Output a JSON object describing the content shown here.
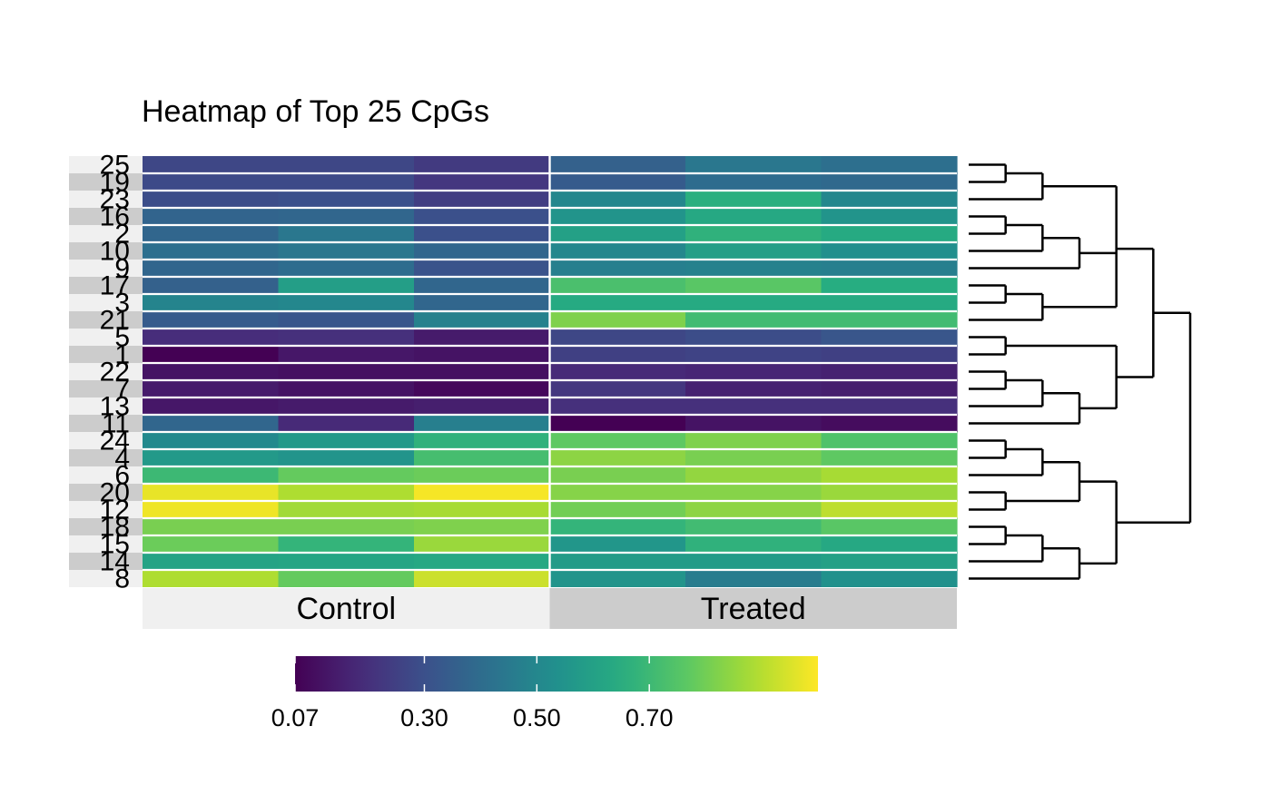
{
  "chart_data": {
    "type": "heatmap",
    "title": "Heatmap of Top 25 CpGs",
    "rows": [
      "25",
      "19",
      "23",
      "16",
      "2",
      "10",
      "9",
      "17",
      "3",
      "21",
      "5",
      "1",
      "22",
      "7",
      "13",
      "11",
      "24",
      "4",
      "6",
      "20",
      "12",
      "18",
      "15",
      "14",
      "8"
    ],
    "groups": [
      {
        "name": "Control",
        "samples": 3
      },
      {
        "name": "Treated",
        "samples": 3
      }
    ],
    "values": [
      [
        0.27,
        0.27,
        0.23,
        0.36,
        0.44,
        0.41
      ],
      [
        0.28,
        0.28,
        0.22,
        0.34,
        0.4,
        0.39
      ],
      [
        0.29,
        0.3,
        0.24,
        0.5,
        0.66,
        0.5
      ],
      [
        0.37,
        0.38,
        0.3,
        0.55,
        0.63,
        0.55
      ],
      [
        0.38,
        0.44,
        0.3,
        0.6,
        0.67,
        0.64
      ],
      [
        0.41,
        0.44,
        0.38,
        0.5,
        0.59,
        0.53
      ],
      [
        0.38,
        0.4,
        0.31,
        0.47,
        0.48,
        0.47
      ],
      [
        0.36,
        0.59,
        0.38,
        0.73,
        0.76,
        0.65
      ],
      [
        0.49,
        0.5,
        0.38,
        0.64,
        0.64,
        0.64
      ],
      [
        0.34,
        0.32,
        0.48,
        0.82,
        0.71,
        0.71
      ],
      [
        0.19,
        0.2,
        0.14,
        0.27,
        0.29,
        0.32
      ],
      [
        0.07,
        0.13,
        0.12,
        0.25,
        0.26,
        0.25
      ],
      [
        0.12,
        0.11,
        0.11,
        0.18,
        0.17,
        0.16
      ],
      [
        0.14,
        0.12,
        0.09,
        0.22,
        0.16,
        0.15
      ],
      [
        0.13,
        0.14,
        0.15,
        0.2,
        0.2,
        0.2
      ],
      [
        0.38,
        0.18,
        0.47,
        0.07,
        0.12,
        0.1
      ],
      [
        0.51,
        0.57,
        0.67,
        0.77,
        0.82,
        0.74
      ],
      [
        0.57,
        0.55,
        0.72,
        0.84,
        0.81,
        0.77
      ],
      [
        0.7,
        0.78,
        0.79,
        0.81,
        0.85,
        0.88
      ],
      [
        0.97,
        0.89,
        0.99,
        0.83,
        0.83,
        0.86
      ],
      [
        0.98,
        0.87,
        0.88,
        0.8,
        0.84,
        0.91
      ],
      [
        0.81,
        0.81,
        0.82,
        0.68,
        0.71,
        0.76
      ],
      [
        0.79,
        0.68,
        0.86,
        0.56,
        0.67,
        0.63
      ],
      [
        0.61,
        0.62,
        0.63,
        0.58,
        0.58,
        0.6
      ],
      [
        0.89,
        0.78,
        0.93,
        0.55,
        0.46,
        0.54
      ]
    ],
    "color_scale": {
      "name": "viridis",
      "min": 0.07,
      "max": 1.0,
      "ticks": [
        0.07,
        0.3,
        0.5,
        0.7
      ],
      "tick_labels": [
        "0.07",
        "0.30",
        "0.50",
        "0.70"
      ]
    },
    "dendrogram": {
      "side": "right",
      "tree": [
        [
          [
            [
              [
                "25",
                "19"
              ],
              "23"
            ],
            [
              [
                [
                  "16",
                  "2"
                ],
                "10"
              ],
              "9"
            ],
            [
              [
                "17",
                "3"
              ],
              "21"
            ]
          ],
          [
            [
              "5",
              "1"
            ],
            [
              [
                [
                  "22",
                  "7"
                ],
                "13"
              ],
              "11"
            ]
          ]
        ],
        [
          [
            [
              [
                "24",
                "4"
              ],
              "6"
            ],
            [
              "20",
              "12"
            ]
          ],
          [
            [
              [
                "18",
                "15"
              ],
              "14"
            ],
            "8"
          ]
        ]
      ]
    }
  }
}
